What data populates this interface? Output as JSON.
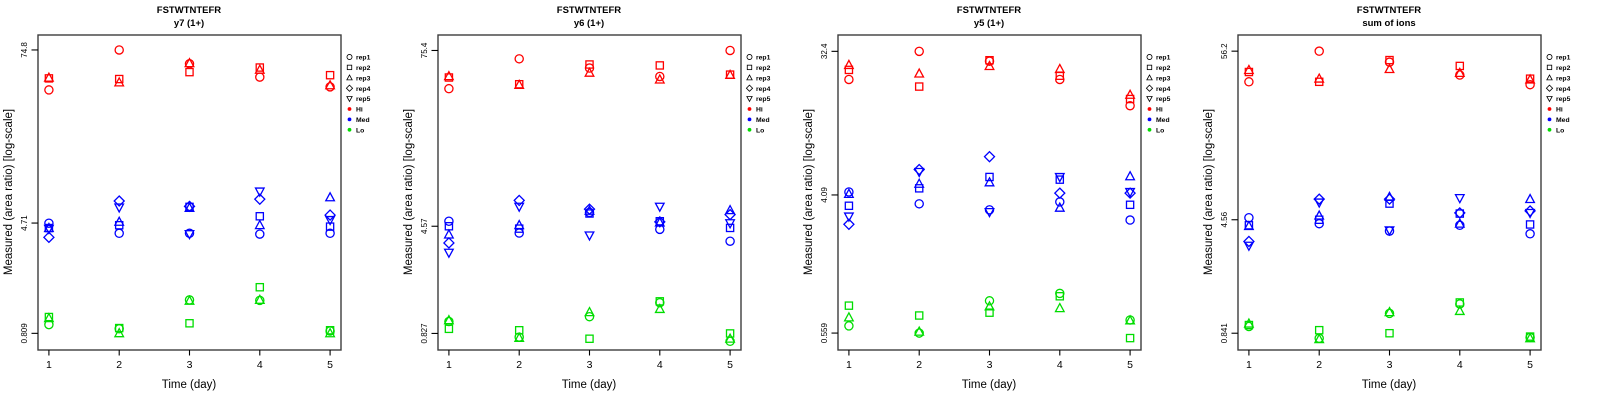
{
  "chart_data": {
    "type": "scatter",
    "xlabel": "Time (day)",
    "ylabel": "Measured (area ratio) [log-scale]",
    "x": [
      1,
      2,
      3,
      4,
      5
    ],
    "x_axis_note": "days 1-5, evenly spaced",
    "y_scale": "log10",
    "grid": false,
    "legend_position": "right-outside",
    "legend": {
      "reps": [
        {
          "label": "rep1",
          "marker": "circle"
        },
        {
          "label": "rep2",
          "marker": "square"
        },
        {
          "label": "rep3",
          "marker": "triangle"
        },
        {
          "label": "rep4",
          "marker": "diamond"
        },
        {
          "label": "rep5",
          "marker": "triangle-down"
        }
      ],
      "groups": [
        {
          "label": "Hi",
          "color": "#FF0000"
        },
        {
          "label": "Med",
          "color": "#0000FF"
        },
        {
          "label": "Lo",
          "color": "#00DD00"
        }
      ]
    },
    "panels": [
      {
        "title": "FSTWTNTEFR",
        "subtitle": "y7 (1+)",
        "yticks": [
          {
            "label": "74.8",
            "value": 74.8
          },
          {
            "label": "4.71",
            "value": 4.71
          },
          {
            "label": "0.809",
            "value": 0.809
          }
        ],
        "ylim": [
          0.62,
          95
        ],
        "groups": [
          {
            "name": "Hi",
            "color": "#FF0000",
            "series": [
              {
                "rep": "rep1",
                "marker": "circle",
                "values": [
                  39.5,
                  74.8,
                  60.0,
                  48.5,
                  41.5
                ]
              },
              {
                "rep": "rep2",
                "marker": "square",
                "values": [
                  47.5,
                  47.0,
                  52.5,
                  56.5,
                  50.0
                ]
              },
              {
                "rep": "rep3",
                "marker": "triangle",
                "values": [
                  48.0,
                  44.5,
                  60.5,
                  54.5,
                  42.5
                ]
              }
            ]
          },
          {
            "name": "Med",
            "color": "#0000FF",
            "series": [
              {
                "rep": "rep1",
                "marker": "circle",
                "values": [
                  4.7,
                  4.0,
                  4.0,
                  3.95,
                  4.0
                ]
              },
              {
                "rep": "rep2",
                "marker": "square",
                "values": [
                  4.35,
                  4.55,
                  6.1,
                  5.25,
                  4.45
                ]
              },
              {
                "rep": "rep3",
                "marker": "triangle",
                "values": [
                  4.35,
                  4.8,
                  6.0,
                  4.55,
                  7.1
                ]
              },
              {
                "rep": "rep4",
                "marker": "diamond",
                "values": [
                  3.75,
                  6.7,
                  6.15,
                  6.9,
                  5.35
                ]
              },
              {
                "rep": "rep5",
                "marker": "triangle-down",
                "values": [
                  4.3,
                  6.05,
                  3.95,
                  7.8,
                  4.95
                ]
              }
            ]
          },
          {
            "name": "Lo",
            "color": "#00DD00",
            "series": [
              {
                "rep": "rep1",
                "marker": "circle",
                "values": [
                  0.93,
                  0.87,
                  1.38,
                  1.37,
                  0.84
                ]
              },
              {
                "rep": "rep2",
                "marker": "square",
                "values": [
                  1.05,
                  0.88,
                  0.95,
                  1.69,
                  0.85
                ]
              },
              {
                "rep": "rep3",
                "marker": "triangle",
                "values": [
                  1.03,
                  0.81,
                  1.36,
                  1.38,
                  0.809
                ]
              }
            ]
          }
        ]
      },
      {
        "title": "FSTWTNTEFR",
        "subtitle": "y6 (1+)",
        "yticks": [
          {
            "label": "75.4",
            "value": 75.4
          },
          {
            "label": "4.57",
            "value": 4.57
          },
          {
            "label": "0.827",
            "value": 0.827
          }
        ],
        "ylim": [
          0.635,
          96.5
        ],
        "groups": [
          {
            "name": "Hi",
            "color": "#FF0000",
            "series": [
              {
                "rep": "rep1",
                "marker": "circle",
                "values": [
                  41.0,
                  66.0,
                  57.0,
                  49.8,
                  75.4
                ]
              },
              {
                "rep": "rep2",
                "marker": "square",
                "values": [
                  49.0,
                  44.0,
                  60.3,
                  59.4,
                  51.3
                ]
              },
              {
                "rep": "rep3",
                "marker": "triangle",
                "values": [
                  50.0,
                  43.5,
                  52.8,
                  47.4,
                  51.0
                ]
              }
            ]
          },
          {
            "name": "Med",
            "color": "#0000FF",
            "series": [
              {
                "rep": "rep1",
                "marker": "circle",
                "values": [
                  4.95,
                  4.1,
                  5.7,
                  4.35,
                  3.6
                ]
              },
              {
                "rep": "rep2",
                "marker": "square",
                "values": [
                  4.57,
                  4.4,
                  5.6,
                  4.95,
                  4.45
                ]
              },
              {
                "rep": "rep3",
                "marker": "triangle",
                "values": [
                  4.0,
                  4.65,
                  5.85,
                  4.85,
                  5.9
                ]
              },
              {
                "rep": "rep4",
                "marker": "diamond",
                "values": [
                  3.5,
                  6.9,
                  6.0,
                  4.9,
                  5.5
                ]
              },
              {
                "rep": "rep5",
                "marker": "triangle-down",
                "values": [
                  3.0,
                  6.25,
                  3.95,
                  6.25,
                  4.8
                ]
              }
            ]
          },
          {
            "name": "Lo",
            "color": "#00DD00",
            "series": [
              {
                "rep": "rep1",
                "marker": "circle",
                "values": [
                  1.0,
                  0.78,
                  1.08,
                  1.35,
                  0.73
                ]
              },
              {
                "rep": "rep2",
                "marker": "square",
                "values": [
                  0.89,
                  0.87,
                  0.76,
                  1.38,
                  0.827
                ]
              },
              {
                "rep": "rep3",
                "marker": "triangle",
                "values": [
                  1.02,
                  0.77,
                  1.16,
                  1.22,
                  0.76
                ]
              }
            ]
          }
        ]
      },
      {
        "title": "FSTWTNTEFR",
        "subtitle": "y5 (1+)",
        "yticks": [
          {
            "label": "32.4",
            "value": 32.4
          },
          {
            "label": "4.09",
            "value": 4.09
          },
          {
            "label": "0.559",
            "value": 0.559
          }
        ],
        "ylim": [
          0.438,
          41
        ],
        "groups": [
          {
            "name": "Hi",
            "color": "#FF0000",
            "series": [
              {
                "rep": "rep1",
                "marker": "circle",
                "values": [
                  21.6,
                  32.4,
                  28.1,
                  21.6,
                  14.8
                ]
              },
              {
                "rep": "rep2",
                "marker": "square",
                "values": [
                  24.8,
                  19.5,
                  28.5,
                  22.8,
                  16.3
                ]
              },
              {
                "rep": "rep3",
                "marker": "triangle",
                "values": [
                  26.6,
                  23.5,
                  26.2,
                  25.1,
                  17.3
                ]
              }
            ]
          },
          {
            "name": "Med",
            "color": "#0000FF",
            "series": [
              {
                "rep": "rep1",
                "marker": "circle",
                "values": [
                  4.27,
                  3.6,
                  3.3,
                  3.7,
                  2.85
                ]
              },
              {
                "rep": "rep2",
                "marker": "square",
                "values": [
                  3.5,
                  4.5,
                  5.3,
                  5.1,
                  3.55
                ]
              },
              {
                "rep": "rep3",
                "marker": "triangle",
                "values": [
                  4.15,
                  4.8,
                  4.9,
                  3.4,
                  5.35
                ]
              },
              {
                "rep": "rep4",
                "marker": "diamond",
                "values": [
                  2.68,
                  5.9,
                  7.1,
                  4.2,
                  4.2
                ]
              },
              {
                "rep": "rep5",
                "marker": "triangle-down",
                "values": [
                  3.0,
                  5.7,
                  3.2,
                  5.3,
                  4.27
                ]
              }
            ]
          },
          {
            "name": "Lo",
            "color": "#00DD00",
            "series": [
              {
                "rep": "rep1",
                "marker": "circle",
                "values": [
                  0.62,
                  0.559,
                  0.89,
                  0.99,
                  0.675
                ]
              },
              {
                "rep": "rep2",
                "marker": "square",
                "values": [
                  0.83,
                  0.72,
                  0.75,
                  0.95,
                  0.52
                ]
              },
              {
                "rep": "rep3",
                "marker": "triangle",
                "values": [
                  0.7,
                  0.57,
                  0.82,
                  0.8,
                  0.67
                ]
              }
            ]
          }
        ]
      },
      {
        "title": "FSTWTNTEFR",
        "subtitle": "sum of ions",
        "yticks": [
          {
            "label": "56.2",
            "value": 56.2
          },
          {
            "label": "4.56",
            "value": 4.56
          },
          {
            "label": "0.841",
            "value": 0.841
          }
        ],
        "ylim": [
          0.655,
          71.5
        ],
        "groups": [
          {
            "name": "Hi",
            "color": "#FF0000",
            "series": [
              {
                "rep": "rep1",
                "marker": "circle",
                "values": [
                  35.6,
                  56.2,
                  47.7,
                  39.4,
                  34.1
                ]
              },
              {
                "rep": "rep2",
                "marker": "square",
                "values": [
                  41.2,
                  35.6,
                  49.2,
                  45.1,
                  37.3
                ]
              },
              {
                "rep": "rep3",
                "marker": "triangle",
                "values": [
                  42.4,
                  37.3,
                  43.0,
                  40.6,
                  36.8
                ]
              }
            ]
          },
          {
            "name": "Med",
            "color": "#0000FF",
            "series": [
              {
                "rep": "rep1",
                "marker": "circle",
                "values": [
                  4.7,
                  4.3,
                  3.85,
                  4.2,
                  3.7
                ]
              },
              {
                "rep": "rep2",
                "marker": "square",
                "values": [
                  4.2,
                  4.56,
                  5.8,
                  5.0,
                  4.25
                ]
              },
              {
                "rep": "rep3",
                "marker": "triangle",
                "values": [
                  4.15,
                  4.85,
                  6.4,
                  4.3,
                  6.2
                ]
              },
              {
                "rep": "rep4",
                "marker": "diamond",
                "values": [
                  3.3,
                  6.2,
                  6.2,
                  5.05,
                  5.2
                ]
              },
              {
                "rep": "rep5",
                "marker": "triangle-down",
                "values": [
                  3.1,
                  5.9,
                  3.9,
                  6.3,
                  5.05
                ]
              }
            ]
          },
          {
            "name": "Lo",
            "color": "#00DD00",
            "series": [
              {
                "rep": "rep1",
                "marker": "circle",
                "values": [
                  0.93,
                  0.78,
                  1.13,
                  1.3,
                  0.79
                ]
              },
              {
                "rep": "rep2",
                "marker": "square",
                "values": [
                  0.95,
                  0.88,
                  0.841,
                  1.33,
                  0.8
                ]
              },
              {
                "rep": "rep3",
                "marker": "triangle",
                "values": [
                  0.97,
                  0.77,
                  1.15,
                  1.17,
                  0.78
                ]
              }
            ]
          }
        ]
      }
    ]
  }
}
